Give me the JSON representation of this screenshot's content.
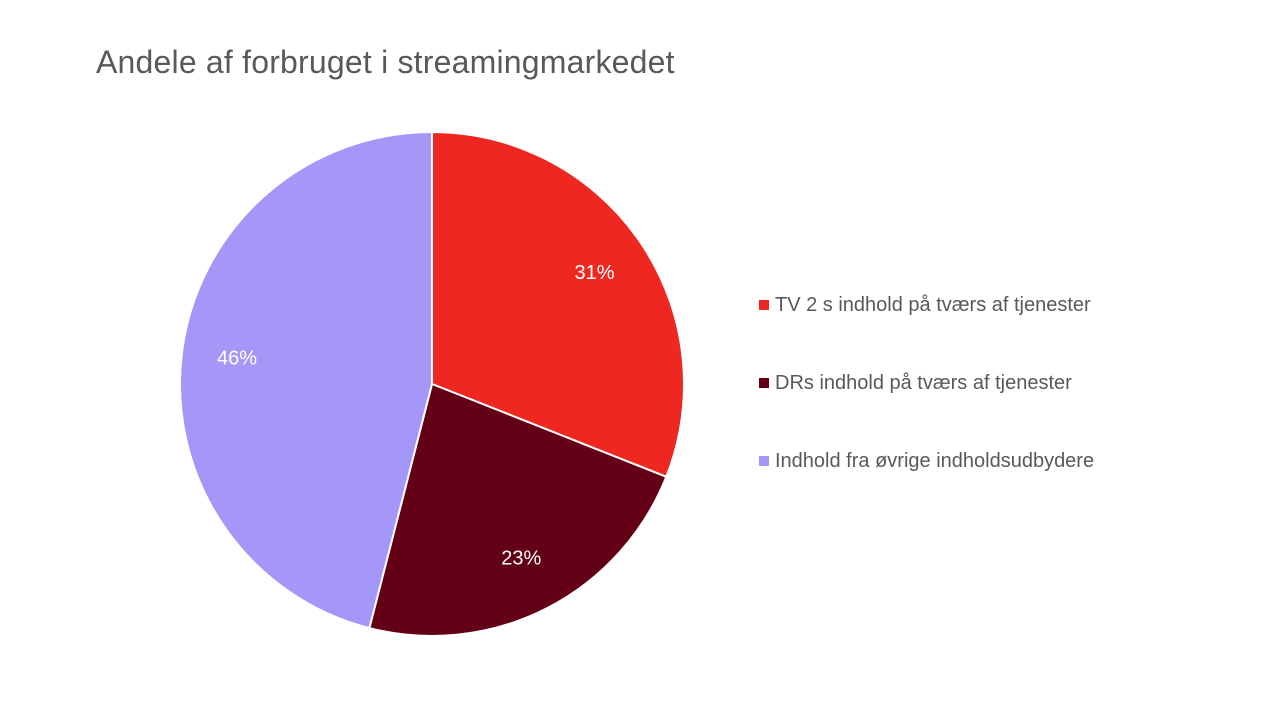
{
  "title": "Andele af forbruget i streamingmarkedet",
  "chart_data": {
    "type": "pie",
    "title": "Andele af forbruget i streamingmarkedet",
    "categories": [
      "TV 2 s indhold på tværs af tjenester",
      "DRs indhold på tværs af tjenester",
      "Indhold fra øvrige indholdsudbydere"
    ],
    "values": [
      31,
      23,
      46
    ],
    "unit": "%",
    "data_labels": [
      "31%",
      "23%",
      "46%"
    ],
    "colors": [
      "#ee2820",
      "#640016",
      "#a497f8"
    ],
    "start_angle_deg": 0,
    "direction": "clockwise",
    "legend_position": "right",
    "grid": false
  },
  "legend": {
    "items": [
      {
        "label": "TV 2 s indhold på tværs af tjenester",
        "color": "#ee2820"
      },
      {
        "label": "DRs indhold på tværs af tjenester",
        "color": "#640016"
      },
      {
        "label": "Indhold fra øvrige indholdsudbydere",
        "color": "#a497f8"
      }
    ]
  }
}
